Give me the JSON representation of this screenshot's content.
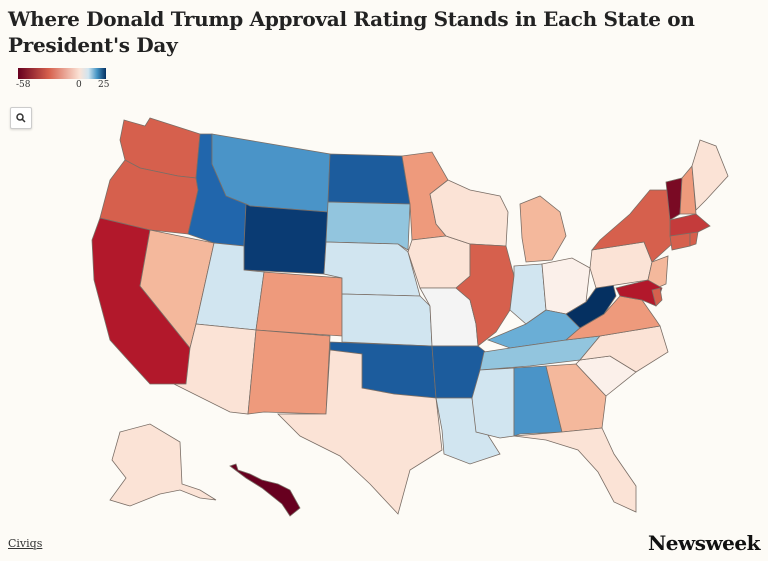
{
  "title": "Where Donald Trump Approval Rating Stands in Each State on President's Day",
  "legend": {
    "min_label": "-58",
    "mid_label": "0",
    "max_label": "25",
    "scale_colors": [
      "#67001f",
      "#d6604d",
      "#fbe3d6",
      "#d1e5f0",
      "#4393c3",
      "#053061"
    ]
  },
  "controls": {
    "zoom_icon": "search-icon"
  },
  "footer": {
    "source": "Civiqs",
    "brand": "Newsweek"
  },
  "states": {
    "WA": "#d6604d",
    "OR": "#d6604d",
    "CA": "#b2182b",
    "NV": "#f4b89c",
    "ID": "#2166ac",
    "MT": "#4a94c8",
    "WY": "#0a3b73",
    "UT": "#d1e5f0",
    "AZ": "#fbe3d6",
    "CO": "#ee9a7c",
    "NM": "#ee9a7c",
    "ND": "#1c5c9d",
    "SD": "#92c5de",
    "NE": "#d1e5f0",
    "KS": "#d1e5f0",
    "OK": "#1c5c9d",
    "TX": "#fbe3d6",
    "MN": "#ee9a7c",
    "IA": "#fbe3d6",
    "MO": "#f4f4f4",
    "AR": "#1c5c9d",
    "LA": "#d1e5f0",
    "WI": "#fbe3d6",
    "IL": "#d6604d",
    "MI": "#f4b89c",
    "IN": "#d1e5f0",
    "OH": "#fbf0ea",
    "KY": "#6aaed6",
    "TN": "#92c5de",
    "MS": "#d1e5f0",
    "AL": "#4a94c8",
    "GA": "#f4b89c",
    "FL": "#fbe3d6",
    "SC": "#fbf0ea",
    "NC": "#fbe3d6",
    "VA": "#ee9a7c",
    "WV": "#053061",
    "PA": "#fbe3d6",
    "NY": "#d6604d",
    "VT": "#7a0a24",
    "NH": "#ee9a7c",
    "ME": "#fbe3d6",
    "MA": "#c43b3b",
    "CT": "#d6604d",
    "NJ": "#f4b89c",
    "MD": "#b2182b",
    "DE": "#d6604d",
    "RI": "#d6604d",
    "AK": "#fbe3d6",
    "HI": "#67001f"
  }
}
